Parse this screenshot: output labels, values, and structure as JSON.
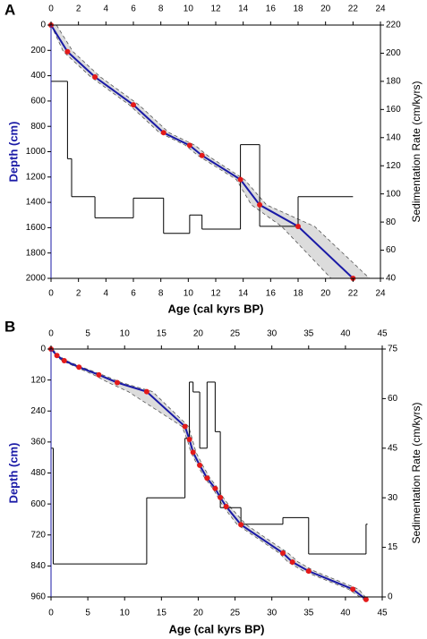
{
  "chart_data": [
    {
      "type": "age-depth",
      "panel": "A",
      "xlabel": "Age (cal kyrs BP)",
      "ylabel": "Depth (cm)",
      "y2label": "Sedimentation Rate (cm/kyrs)",
      "xlim": [
        0,
        24
      ],
      "xticks": [
        0,
        2,
        4,
        6,
        8,
        10,
        12,
        14,
        16,
        18,
        20,
        22,
        24
      ],
      "ylim": [
        0,
        2000
      ],
      "yticks": [
        0,
        200,
        400,
        600,
        800,
        1000,
        1200,
        1400,
        1600,
        1800,
        2000
      ],
      "y2lim": [
        40,
        220
      ],
      "y2ticks": [
        40,
        60,
        80,
        100,
        120,
        140,
        160,
        180,
        200,
        220
      ],
      "model": {
        "color": "#1a1aa6",
        "point_color": "#e31a1a",
        "age": [
          0,
          1.2,
          3.2,
          6,
          8.2,
          10.1,
          11,
          13.8,
          15.2,
          18,
          22
        ],
        "depth": [
          0,
          210,
          410,
          630,
          850,
          950,
          1030,
          1220,
          1420,
          1590,
          2000
        ],
        "age_min": [
          0,
          0.9,
          2.9,
          5.7,
          7.9,
          9.8,
          10.7,
          13.5,
          14.6,
          16.8,
          20.4
        ],
        "age_max": [
          0.4,
          1.6,
          3.6,
          6.4,
          8.6,
          10.5,
          11.4,
          14.1,
          15.7,
          19.2,
          23.2
        ]
      },
      "rate": {
        "axis": "y2",
        "color": "#000000",
        "edges": [
          0,
          1.2,
          1.5,
          3.2,
          6,
          8.2,
          10.1,
          11,
          13.8,
          15.2,
          18,
          22
        ],
        "values": [
          180,
          125,
          98,
          83,
          97,
          72,
          85,
          75,
          135,
          77,
          98
        ]
      }
    },
    {
      "type": "age-depth",
      "panel": "B",
      "xlabel": "Age (cal kyrs BP)",
      "ylabel": "Depth (cm)",
      "y2label": "Sedimentation Rate (cm/kyrs)",
      "xlim": [
        0,
        45
      ],
      "xticks": [
        0,
        5,
        10,
        15,
        20,
        25,
        30,
        35,
        40,
        45
      ],
      "ylim": [
        0,
        960
      ],
      "yticks": [
        0,
        120,
        240,
        360,
        480,
        600,
        720,
        840,
        960
      ],
      "y2lim": [
        0,
        75
      ],
      "y2ticks": [
        0,
        15,
        30,
        45,
        60,
        75
      ],
      "model": {
        "color": "#1a1aa6",
        "point_color": "#e31a1a",
        "age": [
          0,
          0.8,
          1.8,
          3.8,
          6.5,
          9,
          13,
          18.2,
          18.8,
          19.3,
          20.2,
          21.2,
          22.3,
          23,
          23.8,
          25.8,
          31.5,
          32.8,
          35,
          41,
          42.8
        ],
        "depth": [
          0,
          25,
          45,
          70,
          100,
          130,
          165,
          300,
          350,
          400,
          450,
          500,
          540,
          575,
          610,
          680,
          790,
          825,
          860,
          930,
          970
        ],
        "age_min": [
          0,
          0.6,
          1.5,
          3.4,
          5.8,
          7.8,
          10.5,
          17.8,
          18.5,
          19,
          19.9,
          20.9,
          22,
          22.7,
          23.4,
          25.3,
          31,
          32.2,
          34.3,
          40.4,
          42.5
        ],
        "age_max": [
          0.2,
          1,
          2.1,
          4.2,
          7,
          9.6,
          13.8,
          18.7,
          19.2,
          19.7,
          20.6,
          21.6,
          22.7,
          23.4,
          24.3,
          26.5,
          32.2,
          33.6,
          35.8,
          41.8,
          43
        ]
      },
      "rate": {
        "axis": "y2",
        "color": "#000000",
        "edges": [
          0,
          0.3,
          13,
          18.2,
          18.8,
          19.3,
          20.2,
          21.2,
          22.3,
          23,
          25.8,
          31.5,
          35,
          42.8,
          43
        ],
        "values": [
          45,
          10,
          30,
          48,
          65,
          62,
          45,
          65,
          50,
          27,
          22,
          24,
          13,
          22
        ]
      }
    }
  ]
}
